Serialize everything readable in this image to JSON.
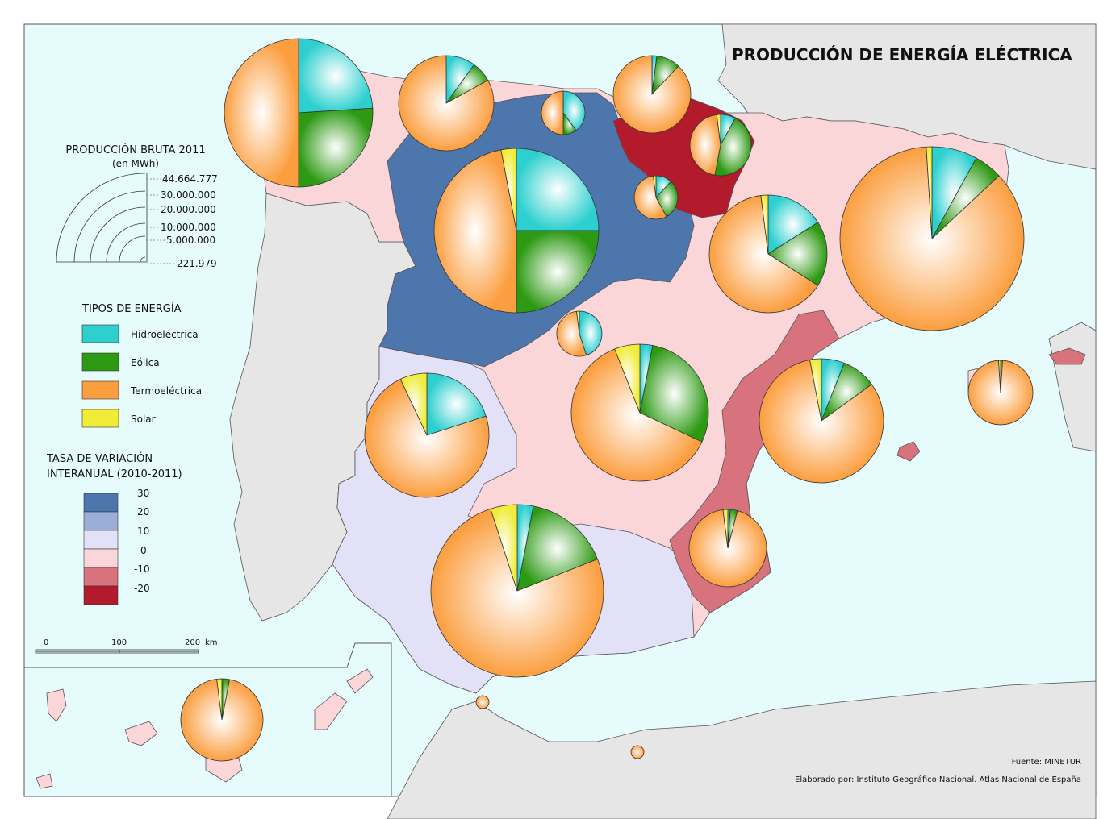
{
  "map": {
    "title": "PRODUCCIÓN DE ENERGÍA ELÉCTRICA",
    "source": "Fuente: MINETUR",
    "credit": "Elaborado por: Instituto Geográfico Nacional. Atlas Nacional de España",
    "colors": {
      "sea": "#e6fcfc",
      "foreign_land": "#e6e6e6",
      "hydro": "#2dd0cf",
      "wind": "#2e9a14",
      "thermal": "#fb9e3f",
      "solar": "#f0ec38",
      "class_30": "#4d76ad",
      "class_20": "#9aaed8",
      "class_10": "#e3e1f8",
      "class_0": "#fad6d9",
      "class_m10": "#d8737e",
      "class_m20": "#b31a2b"
    }
  },
  "legend": {
    "production_title": "PRODUCCIÓN BRUTA 2011",
    "production_unit": "(en MWh)",
    "production_values": [
      "44.664.777",
      "30.000.000",
      "20.000.000",
      "10.000.000",
      "5.000.000",
      "221.979"
    ],
    "types_title": "TIPOS DE ENERGÍA",
    "types": [
      {
        "key": "hydro",
        "label": "Hidroeléctrica"
      },
      {
        "key": "wind",
        "label": "Eólica"
      },
      {
        "key": "thermal",
        "label": "Termoeléctrica"
      },
      {
        "key": "solar",
        "label": "Solar"
      }
    ],
    "rate_title_1": "TASA DE VARIACIÓN",
    "rate_title_2": "INTERANUAL (2010-2011)",
    "rate_breaks": [
      "30",
      "20",
      "10",
      "0",
      "-10",
      "-20"
    ],
    "rate_classes": [
      "class_30",
      "class_20",
      "class_10",
      "class_0",
      "class_m10",
      "class_m20"
    ]
  },
  "scale_bar": {
    "labels": [
      "0",
      "100",
      "200"
    ],
    "unit": "km"
  }
}
